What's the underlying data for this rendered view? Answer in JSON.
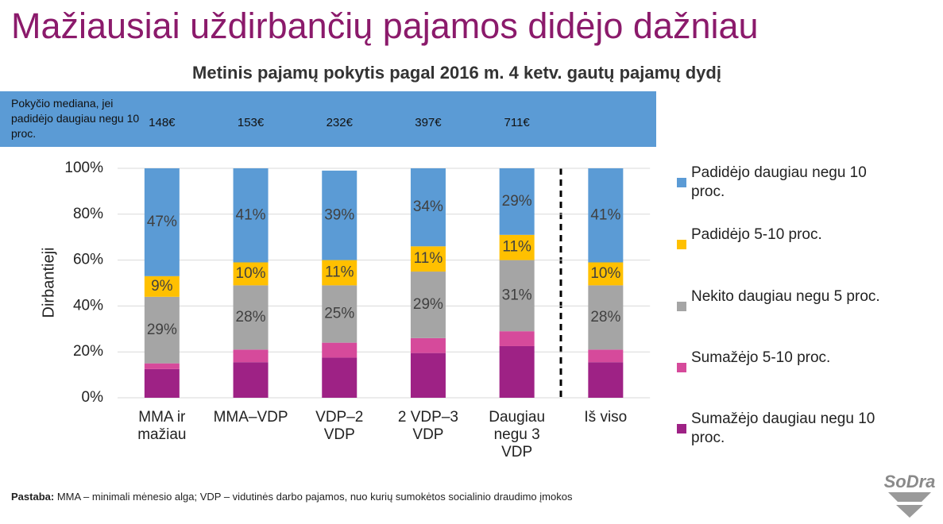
{
  "slide_title": "Mažiausiai uždirbančių pajamos didėjo dažniau",
  "chart_data": {
    "type": "stacked_bar",
    "title": "Metinis pajamų pokytis pagal 2016 m. 4 ketv. gautų pajamų dydį",
    "y_label": "Dirbantieji",
    "categories": [
      "MMA ir mažiau",
      "MMA–VDP",
      "VDP–2 VDP",
      "2 VDP–3 VDP",
      "Daugiau negu 3 VDP",
      "Iš viso"
    ],
    "ylim": [
      0,
      100
    ],
    "yticks": [
      {
        "value": 0,
        "label": "0%"
      },
      {
        "value": 20,
        "label": "20%"
      },
      {
        "value": 40,
        "label": "40%"
      },
      {
        "value": 60,
        "label": "60%"
      },
      {
        "value": 80,
        "label": "80%"
      },
      {
        "value": 100,
        "label": "100%"
      }
    ],
    "grid": true,
    "legend": "right",
    "series": [
      {
        "name": "Sumažėjo daugiau negu 10 proc.",
        "color": "#9e2285",
        "values": [
          12.5,
          15.5,
          17.5,
          19.5,
          22.5,
          15.5
        ]
      },
      {
        "name": "Sumažėjo 5-10 proc.",
        "color": "#d64a9b",
        "values": [
          2.5,
          5.5,
          6.5,
          6.5,
          6.5,
          5.5
        ]
      },
      {
        "name": "Nekito daugiau negu 5 proc.",
        "color": "#a5a5a5",
        "values": [
          29,
          28,
          25,
          29,
          31,
          28
        ],
        "value_labels": [
          "29%",
          "28%",
          "25%",
          "29%",
          "31%",
          "28%"
        ]
      },
      {
        "name": "Padidėjo 5-10 proc.",
        "color": "#ffc000",
        "values": [
          9,
          10,
          11,
          11,
          11,
          10
        ],
        "value_labels": [
          "9%",
          "10%",
          "11%",
          "11%",
          "11%",
          "10%"
        ]
      },
      {
        "name": "Padidėjo daugiau negu 10 proc.",
        "color": "#5b9bd5",
        "values": [
          47,
          41,
          39,
          34,
          29,
          41
        ],
        "value_labels": [
          "47%",
          "41%",
          "39%",
          "34%",
          "29%",
          "41%"
        ]
      }
    ],
    "median_row": {
      "label": "Pokyčio mediana, jei padidėjo daugiau negu 10 proc.",
      "values": [
        148,
        153,
        232,
        397,
        711
      ],
      "value_labels": [
        "148€",
        "153€",
        "232€",
        "397€",
        "711€"
      ]
    }
  },
  "note": {
    "label": "Pastaba:",
    "text": "MMA – minimali mėnesio alga; VDP – vidutinės darbo pajamos, nuo kurių sumokėtos socialinio draudimo įmokos"
  },
  "logo": "SoDra"
}
